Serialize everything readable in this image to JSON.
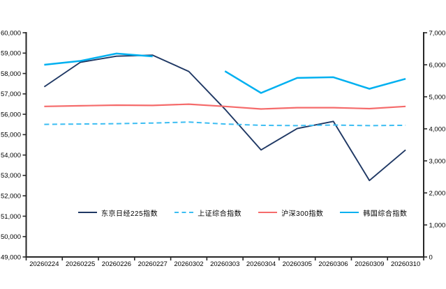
{
  "chart_data": {
    "type": "line",
    "title": "",
    "xlabel": "",
    "ylabel_left": "",
    "ylabel_right": "",
    "grid": false,
    "legend_position": "bottom-center-inside",
    "categories": [
      "20260224",
      "20260225",
      "20260226",
      "20260227",
      "20260302",
      "20260303",
      "20260304",
      "20260305",
      "20260306",
      "20260309",
      "20260310"
    ],
    "left_axis": {
      "min": 49000,
      "max": 60000,
      "step": 1000,
      "tick_labels": [
        "49,000",
        "50,000",
        "51,000",
        "52,000",
        "53,000",
        "54,000",
        "55,000",
        "56,000",
        "57,000",
        "58,000",
        "59,000",
        "60,000"
      ]
    },
    "right_axis": {
      "min": 0,
      "max": 7000,
      "step": 1000,
      "tick_labels": [
        "0",
        "1,000",
        "2,000",
        "3,000",
        "4,000",
        "5,000",
        "6,000",
        "7,000"
      ]
    },
    "series": [
      {
        "name": "东京日经225指数",
        "axis": "left",
        "style": "solid",
        "color": "#1f3864",
        "values": [
          57350,
          58550,
          58850,
          58900,
          58100,
          56250,
          54250,
          55300,
          55650,
          52750,
          54250
        ]
      },
      {
        "name": "上证综合指数",
        "axis": "right",
        "style": "dashed",
        "color": "#3bbdf2",
        "values": [
          4140,
          4150,
          4160,
          4180,
          4210,
          4150,
          4110,
          4100,
          4120,
          4100,
          4110
        ]
      },
      {
        "name": "沪深300指数",
        "axis": "right",
        "style": "solid",
        "color": "#f56b6b",
        "values": [
          4700,
          4720,
          4740,
          4730,
          4770,
          4700,
          4620,
          4660,
          4660,
          4630,
          4700
        ]
      },
      {
        "name": "韩国综合指数",
        "axis": "right",
        "style": "solid",
        "color": "#00b0f0",
        "values": [
          6000,
          6120,
          6350,
          6260,
          null,
          5800,
          5120,
          5590,
          5610,
          5250,
          5560
        ]
      }
    ],
    "colors": {
      "axis": "#262626",
      "text": "#000000",
      "background": "#ffffff"
    }
  }
}
